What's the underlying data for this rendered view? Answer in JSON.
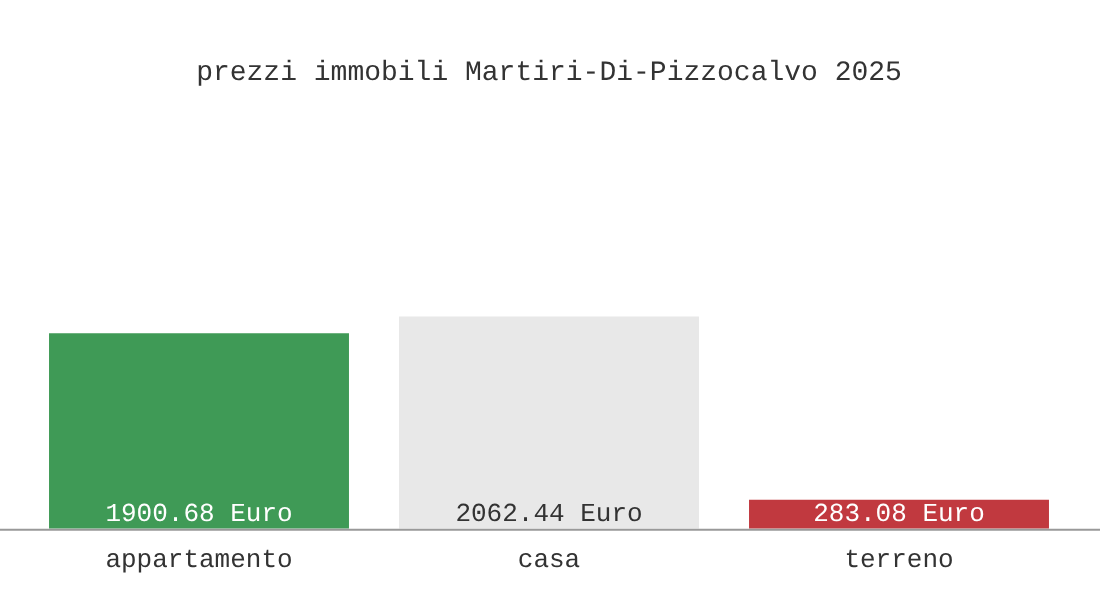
{
  "chart_data": {
    "type": "bar",
    "title": "prezzi immobili Martiri-Di-Pizzocalvo 2025",
    "categories": [
      "appartamento",
      "casa",
      "terreno"
    ],
    "values": [
      1900.68,
      2062.44,
      283.08
    ],
    "colors": [
      "#3f9a56",
      "#e8e8e8",
      "#c1393f"
    ],
    "value_labels": [
      "1900.68 Euro",
      "2062.44 Euro",
      "283.08 Euro"
    ],
    "grid": false,
    "legend": false
  }
}
